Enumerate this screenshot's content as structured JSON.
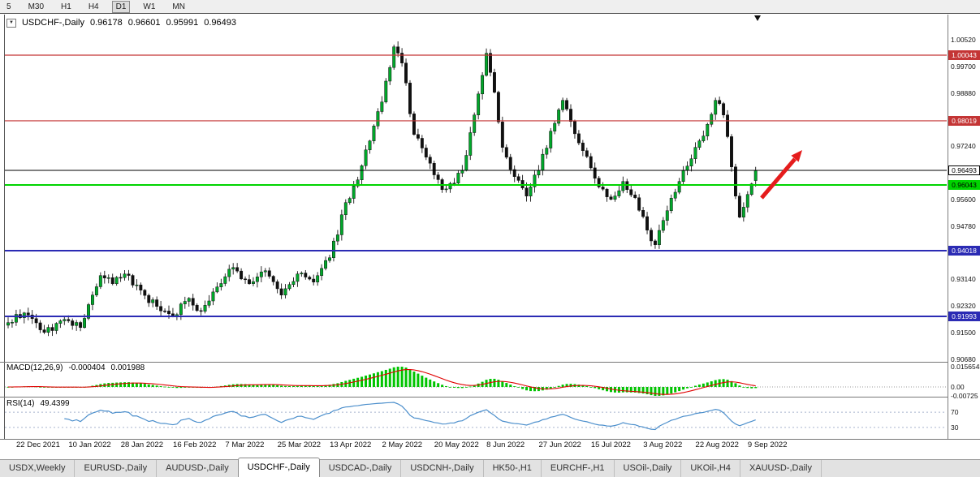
{
  "toolbar": {
    "timeframes": [
      "5",
      "M30",
      "H1",
      "H4",
      "D1",
      "W1",
      "MN"
    ],
    "active_timeframe": "D1"
  },
  "chart": {
    "header_icon": "▼",
    "symbol_label": "USDCHF-,Daily",
    "ohlc": {
      "open": "0.96178",
      "high": "0.96601",
      "low": "0.95991",
      "close": "0.96493"
    },
    "y_axis_labels": [
      "1.00520",
      "0.99700",
      "0.98880",
      "0.97240",
      "0.95600",
      "0.94780",
      "0.93140",
      "0.92320",
      "0.91500",
      "0.90680"
    ],
    "x_axis_labels": [
      "22 Dec 2021",
      "10 Jan 2022",
      "28 Jan 2022",
      "16 Feb 2022",
      "7 Mar 2022",
      "25 Mar 2022",
      "13 Apr 2022",
      "2 May 2022",
      "20 May 2022",
      "8 Jun 2022",
      "27 Jun 2022",
      "15 Jul 2022",
      "3 Aug 2022",
      "22 Aug 2022",
      "9 Sep 2022"
    ],
    "levels": [
      {
        "price": 1.00043,
        "label": "1.00043",
        "color": "#C43535",
        "text_color": "#ffffff",
        "line_width": 1.2
      },
      {
        "price": 0.98019,
        "label": "0.98019",
        "color": "#C43535",
        "text_color": "#ffffff",
        "line_width": 1.2
      },
      {
        "price": 0.96493,
        "label": "0.96493",
        "color": "#000000",
        "text_color": "#000000",
        "badge_bg": "#ffffff",
        "line_width": 1
      },
      {
        "price": 0.96043,
        "label": "0.96043",
        "color": "#00D400",
        "text_color": "#000000",
        "line_width": 2
      },
      {
        "price": 0.94018,
        "label": "0.94018",
        "color": "#2B2BB4",
        "text_color": "#ffffff",
        "line_width": 2
      },
      {
        "price": 0.91993,
        "label": "0.91993",
        "color": "#2B2BB4",
        "text_color": "#ffffff",
        "line_width": 2
      }
    ]
  },
  "macd": {
    "label": "MACD(12,26,9)",
    "value_main": "-0.000404",
    "value_signal": "0.001988",
    "scale_labels": [
      "0.015654",
      "0.00",
      "-0.00725"
    ]
  },
  "rsi": {
    "label": "RSI(14)",
    "value": "49.4399",
    "level_labels": [
      "70",
      "30"
    ],
    "levels": [
      70,
      30
    ]
  },
  "tabs": {
    "items": [
      "USDX,Weekly",
      "EURUSD-,Daily",
      "AUDUSD-,Daily",
      "USDCHF-,Daily",
      "USDCAD-,Daily",
      "USDCNH-,Daily",
      "HK50-,H1",
      "EURCHF-,H1",
      "USOil-,Daily",
      "UKOil-,H4",
      "XAUUSD-,Daily"
    ],
    "active": "USDCHF-,Daily"
  },
  "colors": {
    "bull_candle": "#00A82A",
    "bear_candle": "#101010",
    "wick": "#151515",
    "macd_histogram": "#00C400",
    "macd_signal": "#E00000",
    "rsi_line": "#4C8FCC",
    "trend_arrow": "#E51C1C"
  },
  "chart_data": {
    "type": "candlestick",
    "title": "USDCHF-,Daily",
    "x_range_dates": [
      "22 Dec 2021",
      "9 Sep 2022"
    ],
    "y_range": [
      0.9072,
      1.01
    ],
    "current_ohlc": {
      "open": 0.96178,
      "high": 0.96601,
      "low": 0.95991,
      "close": 0.96493
    },
    "bar_count": 187,
    "close_pivots": [
      [
        0,
        0.918
      ],
      [
        4,
        0.921
      ],
      [
        9,
        0.915
      ],
      [
        14,
        0.919
      ],
      [
        18,
        0.9165
      ],
      [
        23,
        0.9325
      ],
      [
        26,
        0.93
      ],
      [
        29,
        0.933
      ],
      [
        33,
        0.928
      ],
      [
        37,
        0.923
      ],
      [
        41,
        0.92
      ],
      [
        45,
        0.9255
      ],
      [
        48,
        0.9215
      ],
      [
        52,
        0.929
      ],
      [
        56,
        0.935
      ],
      [
        60,
        0.93
      ],
      [
        64,
        0.934
      ],
      [
        68,
        0.9265
      ],
      [
        72,
        0.933
      ],
      [
        76,
        0.9305
      ],
      [
        80,
        0.938
      ],
      [
        84,
        0.955
      ],
      [
        87,
        0.962
      ],
      [
        90,
        0.974
      ],
      [
        93,
        0.986
      ],
      [
        96,
        1.003
      ],
      [
        98,
        0.998
      ],
      [
        101,
        0.976
      ],
      [
        104,
        0.969
      ],
      [
        108,
        0.959
      ],
      [
        111,
        0.961
      ],
      [
        113,
        0.965
      ],
      [
        116,
        0.982
      ],
      [
        119,
        1.001
      ],
      [
        121,
        0.989
      ],
      [
        123,
        0.972
      ],
      [
        126,
        0.963
      ],
      [
        129,
        0.957
      ],
      [
        132,
        0.965
      ],
      [
        135,
        0.977
      ],
      [
        138,
        0.9865
      ],
      [
        140,
        0.98
      ],
      [
        143,
        0.971
      ],
      [
        146,
        0.9625
      ],
      [
        150,
        0.956
      ],
      [
        153,
        0.9615
      ],
      [
        156,
        0.9565
      ],
      [
        159,
        0.9465
      ],
      [
        161,
        0.942
      ],
      [
        164,
        0.9525
      ],
      [
        167,
        0.9615
      ],
      [
        170,
        0.9685
      ],
      [
        173,
        0.9755
      ],
      [
        176,
        0.9865
      ],
      [
        178,
        0.982
      ],
      [
        180,
        0.966
      ],
      [
        182,
        0.9505
      ],
      [
        184,
        0.9575
      ],
      [
        186,
        0.96493
      ]
    ],
    "horizontal_levels": [
      1.00043,
      0.98019,
      0.96493,
      0.96043,
      0.94018,
      0.91993
    ],
    "indicators": [
      {
        "name": "MACD",
        "params": [
          12,
          26,
          9
        ],
        "current_main": -0.000404,
        "current_signal": 0.001988
      },
      {
        "name": "RSI",
        "params": [
          14
        ],
        "current": 49.4399,
        "levels": [
          70,
          30
        ]
      }
    ]
  }
}
